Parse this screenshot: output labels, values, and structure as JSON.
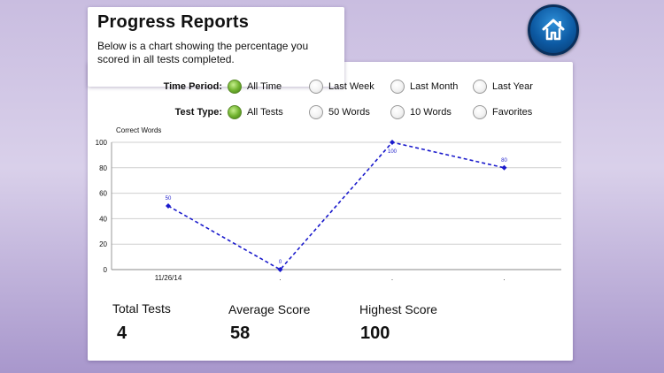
{
  "header": {
    "title": "Progress Reports",
    "description": "Below is a chart showing the percentage you scored in all tests completed."
  },
  "home_button": {
    "icon": "home-icon"
  },
  "filters": {
    "time_period": {
      "label": "Time Period:",
      "options": [
        "All Time",
        "Last Week",
        "Last Month",
        "Last Year"
      ],
      "selected": "All Time"
    },
    "test_type": {
      "label": "Test Type:",
      "options": [
        "All Tests",
        "50 Words",
        "10 Words",
        "Favorites"
      ],
      "selected": "All Tests"
    }
  },
  "chart_data": {
    "type": "line",
    "ylabel": "Correct Words",
    "categories": [
      "11/26/14",
      ".",
      ".",
      "."
    ],
    "values": [
      50,
      0,
      100,
      80
    ],
    "data_labels": [
      "50",
      "0",
      "100",
      "80"
    ],
    "ylim": [
      0,
      100
    ],
    "yticks": [
      "0",
      "20",
      "40",
      "60",
      "80",
      "100"
    ],
    "grid": true,
    "line_color": "#1a1acc",
    "line_style": "dashed"
  },
  "stats": {
    "total_tests": {
      "label": "Total Tests",
      "value": "4"
    },
    "average_score": {
      "label": "Average Score",
      "value": "58"
    },
    "highest_score": {
      "label": "Highest Score",
      "value": "100"
    }
  },
  "colors": {
    "radio_selected": "#74b532",
    "home_button": "#0d5aa3",
    "background": "#c9bde0"
  }
}
